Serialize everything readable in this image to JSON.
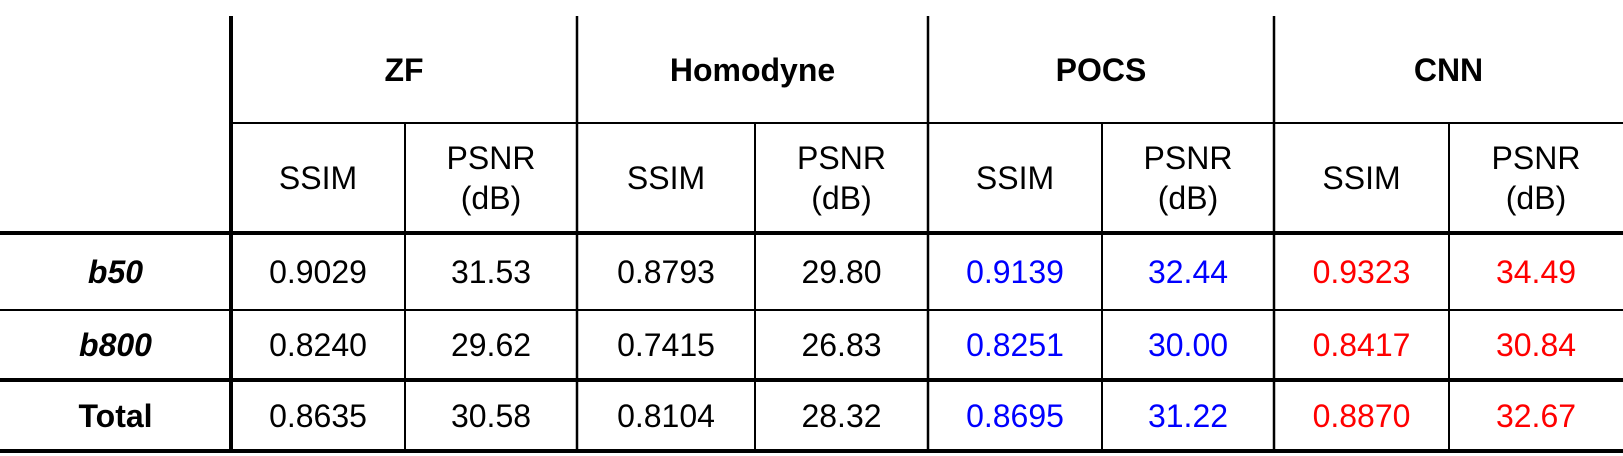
{
  "table": {
    "groups": [
      "ZF",
      "Homodyne",
      "POCS",
      "CNN"
    ],
    "group_colors": [
      "#000000",
      "#000000",
      "#0000ff",
      "#ff0000"
    ],
    "subheaders": [
      "SSIM",
      "PSNR\n(dB)"
    ],
    "rows": [
      {
        "label": "b50",
        "values": [
          "0.9029",
          "31.53",
          "0.8793",
          "29.80",
          "0.9139",
          "32.44",
          "0.9323",
          "34.49"
        ]
      },
      {
        "label": "b800",
        "values": [
          "0.8240",
          "29.62",
          "0.7415",
          "26.83",
          "0.8251",
          "30.00",
          "0.8417",
          "30.84"
        ]
      },
      {
        "label": "Total",
        "values": [
          "0.8635",
          "30.58",
          "0.8104",
          "28.32",
          "0.8695",
          "31.22",
          "0.8870",
          "32.67"
        ]
      }
    ]
  }
}
